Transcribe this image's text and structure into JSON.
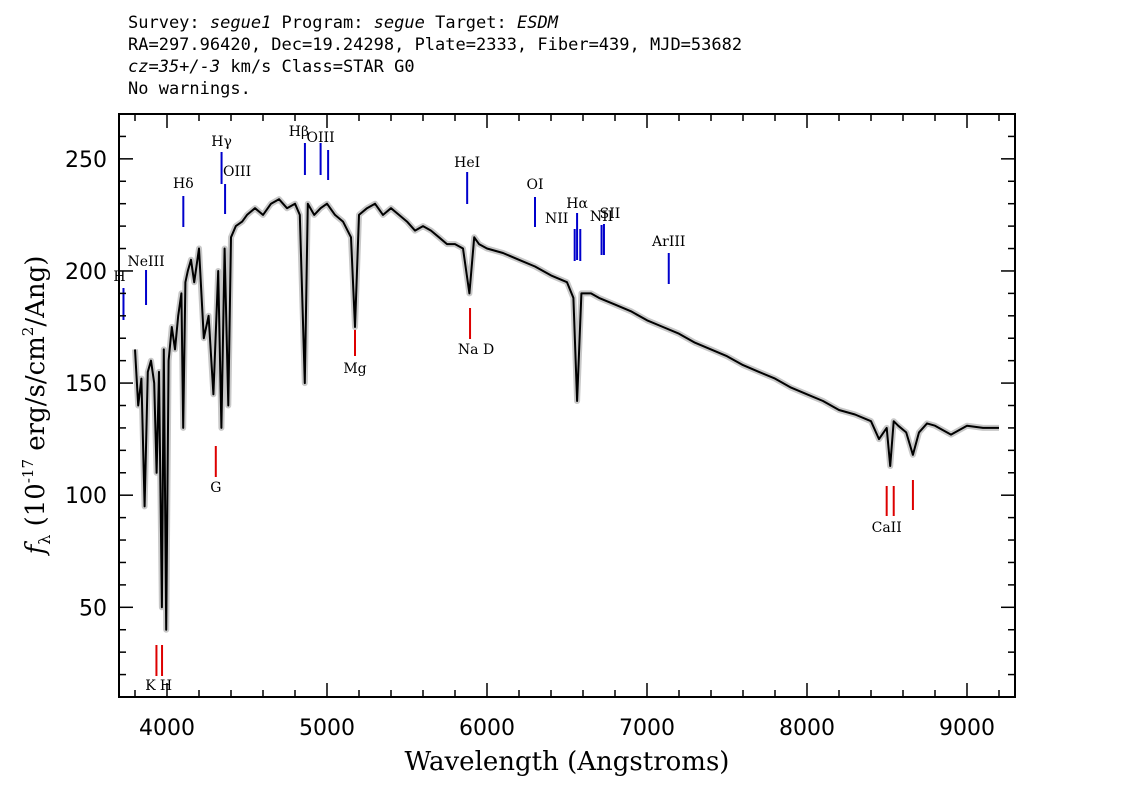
{
  "header": {
    "line1": {
      "survey_label": "Survey: ",
      "survey": "segue1",
      "program_label": " Program: ",
      "program": "segue",
      "target_label": " Target: ",
      "target": "ESDM"
    },
    "line2": "RA=297.96420, Dec=19.24298, Plate=2333, Fiber=439, MJD=53682",
    "line3": {
      "cz": "cz=35+/-3",
      "rest": " km/s Class=STAR G0"
    },
    "line4": "No warnings."
  },
  "chart_data": {
    "type": "line",
    "xlabel": "Wavelength (Angstroms)",
    "ylabel_parts": {
      "f": "f",
      "sub": "λ",
      "pre": " (10",
      "exp1": "-17",
      "mid": " erg/s/cm",
      "exp2": "2",
      "post": "/Ang)"
    },
    "xlim": [
      3700,
      9300
    ],
    "ylim": [
      10,
      270
    ],
    "x_ticks": [
      4000,
      5000,
      6000,
      7000,
      8000,
      9000
    ],
    "y_ticks": [
      50,
      100,
      150,
      200,
      250
    ],
    "series": [
      {
        "color": "#000000",
        "x": [
          3800,
          3820,
          3840,
          3860,
          3880,
          3900,
          3920,
          3935,
          3950,
          3968,
          3980,
          3995,
          4010,
          4030,
          4050,
          4070,
          4090,
          4101,
          4115,
          4130,
          4150,
          4170,
          4200,
          4230,
          4260,
          4290,
          4320,
          4340,
          4360,
          4383,
          4400,
          4430,
          4470,
          4500,
          4550,
          4600,
          4650,
          4700,
          4750,
          4800,
          4830,
          4861,
          4880,
          4920,
          4960,
          5000,
          5050,
          5100,
          5150,
          5175,
          5200,
          5250,
          5300,
          5350,
          5400,
          5450,
          5500,
          5550,
          5600,
          5650,
          5700,
          5750,
          5800,
          5850,
          5890,
          5920,
          5950,
          6000,
          6100,
          6200,
          6300,
          6400,
          6500,
          6540,
          6563,
          6590,
          6650,
          6700,
          6800,
          6900,
          7000,
          7100,
          7200,
          7300,
          7400,
          7500,
          7600,
          7700,
          7800,
          7900,
          8000,
          8100,
          8200,
          8300,
          8400,
          8450,
          8498,
          8520,
          8542,
          8570,
          8620,
          8662,
          8700,
          8750,
          8800,
          8900,
          9000,
          9100,
          9200
        ],
        "y": [
          165,
          140,
          152,
          95,
          155,
          160,
          150,
          110,
          155,
          50,
          165,
          40,
          160,
          175,
          165,
          180,
          190,
          130,
          195,
          200,
          205,
          195,
          210,
          170,
          180,
          145,
          200,
          130,
          210,
          140,
          215,
          220,
          222,
          225,
          228,
          225,
          230,
          232,
          228,
          230,
          225,
          150,
          230,
          225,
          228,
          230,
          225,
          222,
          215,
          175,
          225,
          228,
          230,
          225,
          228,
          225,
          222,
          218,
          220,
          218,
          215,
          212,
          212,
          210,
          190,
          215,
          212,
          210,
          208,
          205,
          202,
          198,
          195,
          188,
          142,
          190,
          190,
          188,
          185,
          182,
          178,
          175,
          172,
          168,
          165,
          162,
          158,
          155,
          152,
          148,
          145,
          142,
          138,
          136,
          133,
          125,
          130,
          113,
          133,
          131,
          128,
          118,
          128,
          132,
          131,
          127,
          131,
          130,
          130
        ]
      }
    ],
    "lines_blue": [
      {
        "label": "H",
        "x": 3728
      },
      {
        "label": "NeIII",
        "x": 3869
      },
      {
        "label": "Hδ",
        "x": 4102
      },
      {
        "label": "Hγ",
        "x": 4341
      },
      {
        "label": "OIII",
        "x": 4363
      },
      {
        "label": "Hβ",
        "x": 4862
      },
      {
        "label": "OIII",
        "x": 4960
      },
      {
        "label": "",
        "x": 5007
      },
      {
        "label": "HeI",
        "x": 5876
      },
      {
        "label": "OI",
        "x": 6300
      },
      {
        "label": "NII",
        "x": 6548
      },
      {
        "label": "Hα",
        "x": 6563
      },
      {
        "label": "",
        "x": 6583
      },
      {
        "label": "NII",
        "x": 6716
      },
      {
        "label": "SII",
        "x": 6731
      },
      {
        "label": "ArIII",
        "x": 7136
      }
    ],
    "lines_red": [
      {
        "label": "K",
        "x": 3934
      },
      {
        "label": "H",
        "x": 3969
      },
      {
        "label": "G",
        "x": 4305
      },
      {
        "label": "Mg",
        "x": 5175
      },
      {
        "label": "Na D",
        "x": 5894
      },
      {
        "label": "CaII",
        "x": 8498
      },
      {
        "label": "",
        "x": 8542
      },
      {
        "label": "",
        "x": 8662
      }
    ]
  }
}
